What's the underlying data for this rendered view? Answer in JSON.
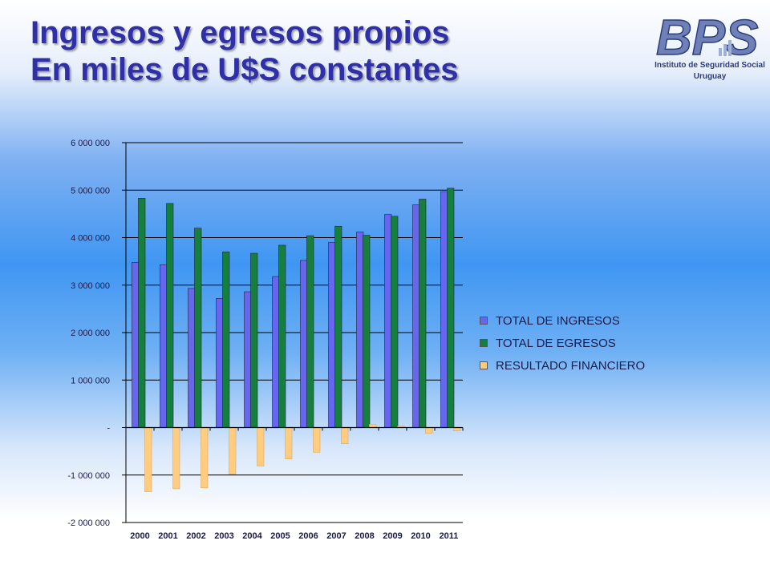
{
  "header": {
    "title_line1": "Ingresos y egresos propios",
    "title_line2": "En miles de U$S constantes"
  },
  "logo": {
    "wordmark": "BPS",
    "subtitle_line1": "Instituto de Seguridad Social",
    "subtitle_line2": "Uruguay",
    "color": "#6f7fb8"
  },
  "chart_data": {
    "type": "bar",
    "categories": [
      "2000",
      "2001",
      "2002",
      "2003",
      "2004",
      "2005",
      "2006",
      "2007",
      "2008",
      "2009",
      "2010",
      "2011"
    ],
    "series": [
      {
        "name": "TOTAL DE INGRESOS",
        "color": "#6666ee",
        "values": [
          3480000,
          3430000,
          2930000,
          2720000,
          2860000,
          3180000,
          3520000,
          3900000,
          4120000,
          4490000,
          4690000,
          4970000
        ]
      },
      {
        "name": "TOTAL DE EGRESOS",
        "color": "#15803d",
        "values": [
          4830000,
          4720000,
          4200000,
          3700000,
          3670000,
          3840000,
          4040000,
          4240000,
          4050000,
          4450000,
          4810000,
          5040000
        ]
      },
      {
        "name": "RESULTADO FINANCIERO",
        "color": "#ffcc80",
        "values": [
          -1350000,
          -1290000,
          -1270000,
          -980000,
          -810000,
          -660000,
          -520000,
          -340000,
          70000,
          30000,
          -120000,
          -70000
        ]
      }
    ],
    "ylim": [
      -2000000,
      6000000
    ],
    "yticks": [
      6000000,
      5000000,
      4000000,
      3000000,
      2000000,
      1000000,
      0,
      -1000000,
      -2000000
    ],
    "ytick_labels": [
      "6 000 000",
      "5 000 000",
      "4 000 000",
      "3 000 000",
      "2 000 000",
      "1 000 000",
      "-",
      "-1 000 000",
      "-2 000 000"
    ],
    "grid": true,
    "legend_position": "right",
    "title": "",
    "xlabel": "",
    "ylabel": ""
  }
}
